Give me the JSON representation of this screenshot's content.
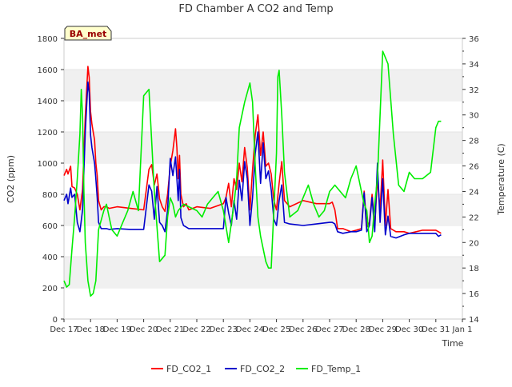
{
  "chart_data": {
    "type": "line",
    "title": "FD Chamber A CO2 and Temp",
    "xlabel": "Time",
    "ylabel_left": "CO2 (ppm)",
    "ylabel_right": "Temperature (C)",
    "badge": "BA_met",
    "x_tick_labels": [
      "Dec 17",
      "Dec 18",
      "Dec 19",
      "Dec 20",
      "Dec 21",
      "Dec 22",
      "Dec 23",
      "Dec 24",
      "Dec 25",
      "Dec 26",
      "Dec 27",
      "Dec 28",
      "Dec 29",
      "Dec 30",
      "Dec 31",
      "Jan 1"
    ],
    "xlim": [
      0,
      15
    ],
    "ylim_left": [
      0,
      1800
    ],
    "ylim_right": [
      14,
      36
    ],
    "y_ticks_left": [
      0,
      200,
      400,
      600,
      800,
      1000,
      1200,
      1400,
      1600,
      1800
    ],
    "y_ticks_right": [
      14,
      16,
      18,
      20,
      22,
      24,
      26,
      28,
      30,
      32,
      34,
      36
    ],
    "grid": "horizontal bands",
    "legend_position": "bottom",
    "colors": {
      "FD_CO2_1": "#ff0000",
      "FD_CO2_2": "#0000cc",
      "FD_Temp_1": "#00ee00",
      "badge_bg": "#ffffcc",
      "badge_text": "#990000",
      "band": "#f0f0f0"
    },
    "series": [
      {
        "name": "FD_CO2_1",
        "axis": "left",
        "x": [
          0.0,
          0.1,
          0.15,
          0.25,
          0.3,
          0.4,
          0.5,
          0.6,
          0.7,
          0.8,
          0.9,
          0.95,
          1.0,
          1.05,
          1.1,
          1.15,
          1.2,
          1.25,
          1.3,
          1.35,
          1.4,
          1.5,
          1.6,
          1.7,
          2.0,
          2.5,
          3.0,
          3.2,
          3.3,
          3.4,
          3.5,
          3.6,
          3.7,
          3.8,
          3.9,
          4.0,
          4.1,
          4.2,
          4.25,
          4.3,
          4.35,
          4.4,
          4.5,
          4.6,
          4.7,
          5.0,
          5.5,
          6.0,
          6.1,
          6.2,
          6.3,
          6.4,
          6.5,
          6.6,
          6.7,
          6.8,
          6.9,
          7.0,
          7.1,
          7.2,
          7.3,
          7.4,
          7.5,
          7.6,
          7.7,
          7.8,
          7.9,
          8.0,
          8.1,
          8.2,
          8.3,
          8.5,
          9.0,
          9.5,
          10.0,
          10.1,
          10.2,
          10.3,
          10.5,
          10.8,
          11.0,
          11.2,
          11.3,
          11.4,
          11.5,
          11.6,
          11.7,
          11.8,
          11.9,
          12.0,
          12.1,
          12.2,
          12.3,
          12.5,
          12.8,
          13.0,
          13.5,
          14.0,
          14.1,
          14.2
        ],
        "values": [
          920,
          960,
          930,
          980,
          850,
          840,
          800,
          700,
          830,
          1300,
          1620,
          1550,
          1330,
          1250,
          1200,
          1150,
          1000,
          920,
          760,
          730,
          700,
          720,
          720,
          710,
          720,
          710,
          700,
          960,
          990,
          860,
          930,
          770,
          720,
          690,
          800,
          980,
          1080,
          1220,
          1100,
          900,
          1050,
          800,
          720,
          740,
          700,
          720,
          710,
          740,
          780,
          870,
          720,
          900,
          830,
          1000,
          880,
          1100,
          970,
          700,
          960,
          1180,
          1310,
          1050,
          1200,
          980,
          1000,
          930,
          760,
          700,
          870,
          1010,
          760,
          720,
          760,
          740,
          740,
          750,
          700,
          580,
          580,
          560,
          570,
          580,
          820,
          590,
          620,
          800,
          600,
          900,
          700,
          1020,
          600,
          830,
          580,
          560,
          560,
          550,
          570,
          570,
          560,
          550
        ],
        "color": "#ff0000"
      },
      {
        "name": "FD_CO2_2",
        "axis": "left",
        "x": [
          0.0,
          0.1,
          0.15,
          0.25,
          0.3,
          0.4,
          0.5,
          0.6,
          0.7,
          0.8,
          0.9,
          0.95,
          1.0,
          1.05,
          1.1,
          1.15,
          1.2,
          1.25,
          1.3,
          1.35,
          1.4,
          1.5,
          1.6,
          1.7,
          2.0,
          2.5,
          3.0,
          3.2,
          3.3,
          3.4,
          3.5,
          3.6,
          3.7,
          3.8,
          3.9,
          4.0,
          4.1,
          4.2,
          4.25,
          4.3,
          4.35,
          4.4,
          4.5,
          4.6,
          4.7,
          5.0,
          5.5,
          6.0,
          6.1,
          6.2,
          6.3,
          6.4,
          6.5,
          6.6,
          6.7,
          6.8,
          6.9,
          7.0,
          7.1,
          7.2,
          7.3,
          7.4,
          7.5,
          7.6,
          7.7,
          7.8,
          7.9,
          8.0,
          8.1,
          8.2,
          8.3,
          8.5,
          9.0,
          9.5,
          10.0,
          10.1,
          10.2,
          10.3,
          10.5,
          10.8,
          11.0,
          11.2,
          11.3,
          11.4,
          11.5,
          11.6,
          11.7,
          11.8,
          11.9,
          12.0,
          12.1,
          12.2,
          12.3,
          12.5,
          12.8,
          13.0,
          13.5,
          14.0,
          14.1,
          14.2
        ],
        "values": [
          760,
          800,
          740,
          840,
          780,
          800,
          620,
          560,
          700,
          1200,
          1520,
          1450,
          1180,
          1100,
          1050,
          1000,
          900,
          780,
          620,
          600,
          580,
          580,
          580,
          575,
          580,
          575,
          575,
          860,
          820,
          640,
          850,
          620,
          600,
          560,
          700,
          1030,
          920,
          1040,
          900,
          760,
          960,
          650,
          600,
          590,
          580,
          580,
          580,
          580,
          780,
          680,
          600,
          760,
          640,
          890,
          760,
          1010,
          900,
          600,
          780,
          1060,
          1200,
          870,
          1130,
          900,
          950,
          830,
          640,
          600,
          760,
          860,
          620,
          610,
          600,
          610,
          620,
          620,
          610,
          560,
          550,
          560,
          560,
          570,
          810,
          560,
          600,
          780,
          560,
          1000,
          620,
          900,
          540,
          660,
          530,
          520,
          540,
          550,
          550,
          550,
          530,
          540
        ],
        "color": "#0000cc"
      },
      {
        "name": "FD_Temp_1",
        "axis": "right",
        "x": [
          0.0,
          0.1,
          0.2,
          0.3,
          0.4,
          0.5,
          0.6,
          0.65,
          0.7,
          0.75,
          0.8,
          0.9,
          1.0,
          1.1,
          1.2,
          1.3,
          1.5,
          1.6,
          1.7,
          1.8,
          2.0,
          2.2,
          2.4,
          2.6,
          2.8,
          3.0,
          3.2,
          3.4,
          3.6,
          3.8,
          3.9,
          4.0,
          4.1,
          4.2,
          4.3,
          4.5,
          4.7,
          5.0,
          5.2,
          5.4,
          5.6,
          5.8,
          6.0,
          6.2,
          6.4,
          6.5,
          6.6,
          6.8,
          7.0,
          7.1,
          7.2,
          7.3,
          7.4,
          7.5,
          7.6,
          7.7,
          7.8,
          8.0,
          8.05,
          8.1,
          8.2,
          8.3,
          8.5,
          8.8,
          9.0,
          9.2,
          9.4,
          9.6,
          9.8,
          10.0,
          10.2,
          10.4,
          10.6,
          10.8,
          11.0,
          11.2,
          11.3,
          11.4,
          11.5,
          11.6,
          11.7,
          11.8,
          11.9,
          12.0,
          12.2,
          12.4,
          12.6,
          12.8,
          13.0,
          13.2,
          13.5,
          13.8,
          14.0,
          14.1,
          14.2
        ],
        "values": [
          17.0,
          16.5,
          16.7,
          19.5,
          22.0,
          25.0,
          28.5,
          32.0,
          30.0,
          24.0,
          20.0,
          17.0,
          15.8,
          16.0,
          17.0,
          21.0,
          22.5,
          23.0,
          22.0,
          21.0,
          20.5,
          21.5,
          22.5,
          24.0,
          22.5,
          31.5,
          32.0,
          24.0,
          18.5,
          19.0,
          22.0,
          23.5,
          23.0,
          22.0,
          22.5,
          23.0,
          22.8,
          22.5,
          22.0,
          23.0,
          23.5,
          24.0,
          22.5,
          20.0,
          23.0,
          25.0,
          29.0,
          31.0,
          32.5,
          31.0,
          26.0,
          22.0,
          20.5,
          19.5,
          18.5,
          18.0,
          18.0,
          27.0,
          33.0,
          33.5,
          30.0,
          25.5,
          22.0,
          22.5,
          23.5,
          24.5,
          23.0,
          22.0,
          22.5,
          24.0,
          24.5,
          24.0,
          23.5,
          25.0,
          26.0,
          24.0,
          23.0,
          22.5,
          20.0,
          20.5,
          23.0,
          25.0,
          30.0,
          35.0,
          34.0,
          28.5,
          24.5,
          24.0,
          25.5,
          25.0,
          25.0,
          25.5,
          29.0,
          29.5,
          29.5
        ],
        "color": "#00ee00"
      }
    ]
  }
}
